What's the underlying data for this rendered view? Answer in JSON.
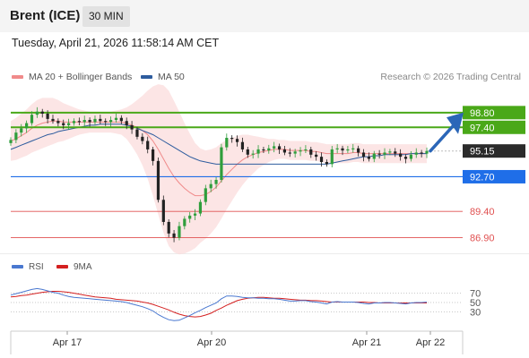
{
  "header": {
    "instrument": "Brent (ICE)",
    "interval": "30 MIN",
    "datetime": "Tuesday, April 21, 2026 11:58:14 AM CET"
  },
  "legend": {
    "bollinger": {
      "label": "MA 20 + Bollinger Bands",
      "color": "#f08a8a"
    },
    "ma50": {
      "label": "MA 50",
      "color": "#2e5c9e"
    },
    "credit": "Research © 2026 Trading Central"
  },
  "rsi_legend": {
    "rsi": {
      "label": "RSI",
      "color": "#4a78d0"
    },
    "ma9": {
      "label": "9MA",
      "color": "#d42020"
    }
  },
  "chart_data": [
    {
      "type": "candlestick",
      "x_labels": [
        "Apr 17",
        "Apr 20",
        "Apr 21",
        "Apr 22"
      ],
      "y_range": [
        85.5,
        101.0
      ],
      "current_price": 95.15,
      "levels": [
        {
          "value": 98.8,
          "label": "98.80",
          "style": "resistance",
          "color": "#4aa818"
        },
        {
          "value": 97.4,
          "label": "97.40",
          "style": "resistance",
          "color": "#4aa818"
        },
        {
          "value": 95.15,
          "label": "95.15",
          "style": "last",
          "color": "#2b2b2b"
        },
        {
          "value": 92.7,
          "label": "92.70",
          "style": "pivot",
          "color": "#1f6ee8"
        },
        {
          "value": 89.4,
          "label": "89.40",
          "style": "support",
          "color": "#e05050"
        },
        {
          "value": 86.9,
          "label": "86.90",
          "style": "support",
          "color": "#e05050"
        }
      ],
      "closes": [
        96.2,
        96.9,
        97.3,
        97.8,
        98.6,
        98.9,
        98.7,
        98.2,
        98.0,
        97.8,
        97.6,
        97.8,
        98.0,
        97.9,
        98.1,
        97.9,
        98.2,
        98.0,
        97.9,
        98.1,
        98.3,
        98.0,
        97.6,
        97.2,
        96.5,
        96.1,
        95.3,
        94.2,
        90.5,
        88.4,
        87.3,
        86.9,
        88.0,
        88.7,
        89.0,
        89.2,
        90.3,
        91.6,
        92.0,
        92.4,
        95.5,
        96.4,
        96.3,
        96.0,
        95.3,
        94.8,
        94.9,
        95.3,
        95.2,
        95.4,
        95.6,
        95.3,
        95.0,
        94.9,
        95.1,
        95.2,
        95.3,
        94.8,
        94.6,
        94.1,
        93.9,
        95.3,
        95.4,
        95.2,
        95.3,
        95.4,
        95.0,
        94.6,
        94.4,
        94.9,
        94.8,
        95.0,
        95.1,
        94.9,
        94.6,
        94.4,
        94.8,
        95.0,
        94.9,
        95.15
      ],
      "ma20": [
        96.1,
        96.3,
        96.6,
        96.9,
        97.3,
        97.6,
        97.8,
        97.9,
        98.0,
        98.0,
        97.9,
        97.9,
        97.9,
        97.9,
        97.9,
        97.9,
        97.9,
        97.9,
        97.9,
        97.9,
        97.9,
        97.9,
        97.8,
        97.6,
        97.4,
        97.1,
        96.7,
        96.1,
        95.3,
        94.4,
        93.5,
        92.7,
        92.1,
        91.6,
        91.2,
        90.9,
        90.9,
        91.0,
        91.3,
        91.7,
        92.3,
        92.9,
        93.4,
        93.9,
        94.3,
        94.6,
        94.8,
        95.0,
        95.1,
        95.2,
        95.3,
        95.3,
        95.3,
        95.2,
        95.2,
        95.2,
        95.2,
        95.1,
        95.1,
        95.0,
        94.9,
        94.9,
        94.9,
        94.9,
        94.9,
        95.0,
        95.0,
        94.9,
        94.9,
        94.9,
        94.9,
        94.9,
        94.9,
        94.9,
        94.9,
        94.9,
        94.9,
        94.9,
        94.9,
        94.9
      ],
      "ma50": [
        95.3,
        95.5,
        95.7,
        95.9,
        96.1,
        96.3,
        96.5,
        96.7,
        96.8,
        97.0,
        97.1,
        97.2,
        97.3,
        97.4,
        97.5,
        97.6,
        97.6,
        97.7,
        97.7,
        97.7,
        97.7,
        97.7,
        97.6,
        97.5,
        97.3,
        97.1,
        96.9,
        96.7,
        96.4,
        96.1,
        95.8,
        95.5,
        95.2,
        94.9,
        94.6,
        94.4,
        94.2,
        94.1,
        94.0,
        93.9,
        93.9,
        93.9,
        93.9,
        93.9,
        93.9,
        93.9,
        93.9,
        93.9,
        93.9,
        93.9,
        93.9,
        93.9,
        93.9,
        93.9,
        93.9,
        93.9,
        93.9,
        93.9,
        93.9,
        93.9,
        93.9,
        94.0,
        94.1,
        94.2,
        94.3,
        94.4,
        94.5,
        94.6,
        94.6,
        94.7,
        94.7,
        94.8,
        94.8,
        94.8,
        94.8,
        94.8,
        94.9,
        94.9,
        94.9,
        94.9
      ],
      "band_width": [
        1.9,
        2.0,
        2.1,
        2.2,
        2.3,
        2.4,
        2.4,
        2.3,
        2.2,
        2.0,
        1.8,
        1.6,
        1.4,
        1.2,
        1.1,
        1.0,
        1.0,
        1.0,
        1.0,
        1.0,
        1.1,
        1.2,
        1.5,
        2.0,
        2.6,
        3.3,
        4.2,
        5.2,
        6.2,
        7.0,
        7.4,
        7.2,
        6.8,
        6.2,
        5.6,
        5.0,
        4.5,
        4.2,
        4.0,
        3.8,
        3.6,
        3.3,
        3.0,
        2.7,
        2.4,
        2.1,
        1.8,
        1.5,
        1.3,
        1.1,
        1.0,
        0.9,
        0.9,
        0.9,
        0.9,
        0.9,
        0.9,
        0.9,
        0.9,
        0.9,
        0.9,
        0.9,
        0.9,
        0.9,
        0.9,
        0.9,
        0.9,
        0.9,
        0.9,
        0.9,
        0.9,
        0.9,
        0.9,
        0.9,
        0.9,
        0.9,
        0.9,
        0.9,
        0.9,
        0.9
      ]
    },
    {
      "type": "line",
      "name": "RSI",
      "y_range": [
        0,
        100
      ],
      "levels": [
        70,
        50,
        30
      ],
      "rsi": [
        66,
        69,
        72,
        75,
        78,
        80,
        78,
        75,
        72,
        70,
        66,
        63,
        61,
        60,
        59,
        58,
        57,
        56,
        55,
        54,
        53,
        52,
        50,
        47,
        44,
        41,
        37,
        32,
        24,
        18,
        13,
        11,
        12,
        17,
        22,
        28,
        33,
        39,
        44,
        49,
        58,
        64,
        64,
        63,
        61,
        60,
        60,
        59,
        59,
        58,
        58,
        57,
        55,
        53,
        53,
        54,
        54,
        52,
        51,
        49,
        47,
        51,
        52,
        51,
        51,
        51,
        50,
        48,
        47,
        49,
        49,
        50,
        50,
        49,
        48,
        47,
        49,
        50,
        50,
        51
      ],
      "ma9": [
        62,
        63,
        65,
        66,
        68,
        70,
        72,
        73,
        74,
        74,
        73,
        72,
        70,
        68,
        66,
        64,
        62,
        61,
        60,
        59,
        57,
        56,
        55,
        54,
        53,
        51,
        49,
        46,
        42,
        38,
        34,
        29,
        25,
        22,
        20,
        19,
        20,
        23,
        27,
        33,
        38,
        44,
        49,
        54,
        57,
        59,
        60,
        61,
        61,
        60,
        59,
        59,
        58,
        57,
        56,
        55,
        55,
        54,
        54,
        53,
        52,
        51,
        51,
        51,
        51,
        51,
        51,
        51,
        50,
        50,
        49,
        49,
        49,
        49,
        49,
        49,
        49,
        49,
        49,
        49
      ]
    }
  ]
}
